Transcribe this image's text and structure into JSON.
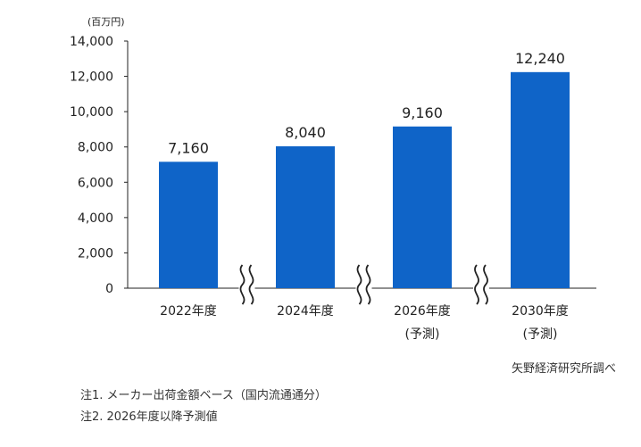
{
  "colors": {
    "bar": "#0f64c8",
    "axis": "#222222",
    "text": "#222222"
  },
  "chart_data": {
    "type": "bar",
    "unit_label": "(百万円)",
    "categories": [
      [
        "2022年度"
      ],
      [
        "2024年度"
      ],
      [
        "2026年度",
        "(予測)"
      ],
      [
        "2030年度",
        "(予測)"
      ]
    ],
    "values": [
      7160,
      8040,
      9160,
      12240
    ],
    "value_labels": [
      "7,160",
      "8,040",
      "9,160",
      "12,240"
    ],
    "ylim": [
      0,
      14000
    ],
    "yticks": [
      0,
      2000,
      4000,
      6000,
      8000,
      10000,
      12000,
      14000
    ],
    "ytick_labels": [
      "0",
      "2,000",
      "4,000",
      "6,000",
      "8,000",
      "10,000",
      "12,000",
      "14,000"
    ],
    "axis_breaks_between_bars": [
      true,
      true,
      true
    ],
    "grid": false,
    "legend": "none"
  },
  "source": "矢野経済研究所調べ",
  "notes": [
    "注1. メーカー出荷金額ベース（国内流通通分）",
    "注2. 2026年度以降予測値"
  ]
}
